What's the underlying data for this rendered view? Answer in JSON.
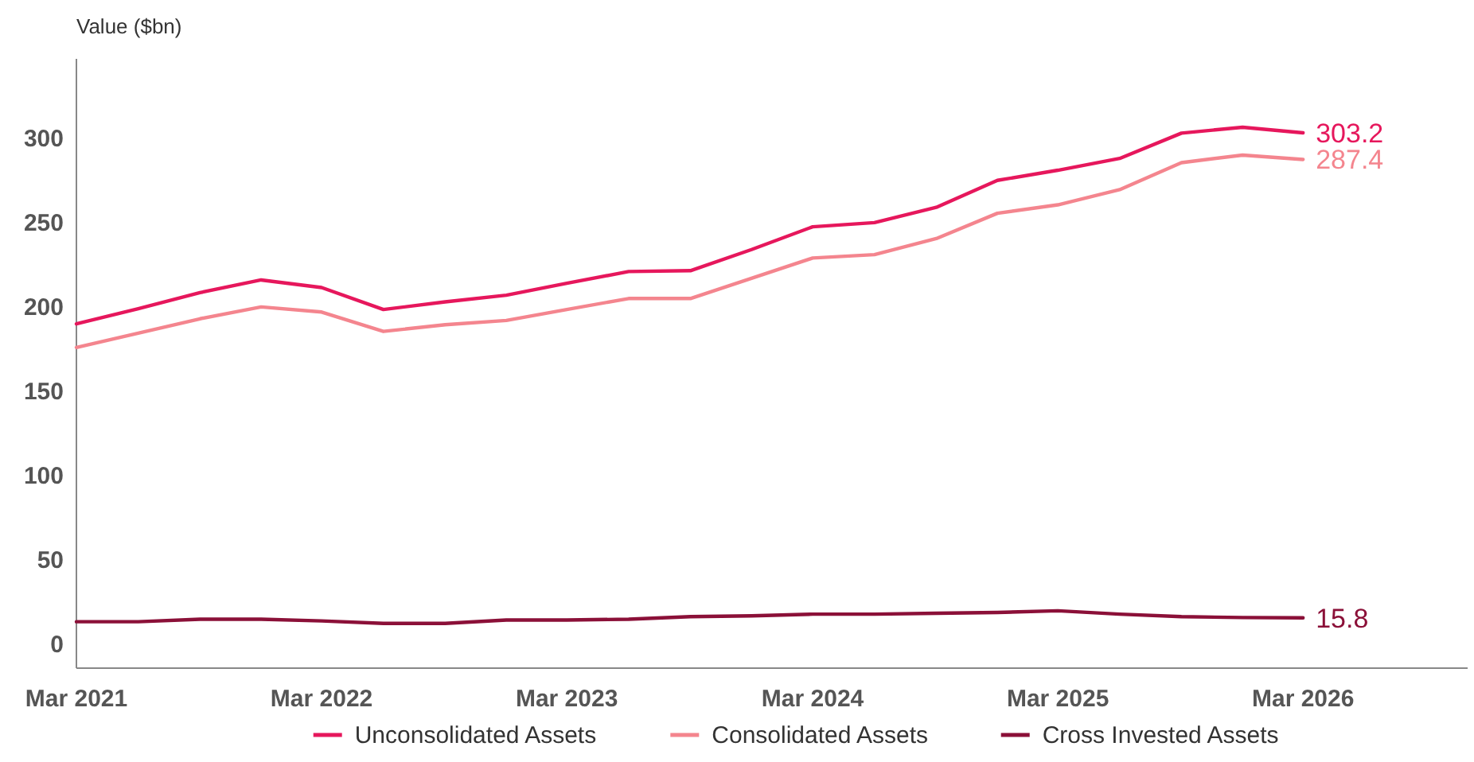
{
  "chart_data": {
    "type": "line",
    "ylabel": "Value ($bn)",
    "x": [
      "2021-03",
      "2021-06",
      "2021-09",
      "2021-12",
      "2022-03",
      "2022-06",
      "2022-09",
      "2022-12",
      "2023-03",
      "2023-06",
      "2023-09",
      "2023-12",
      "2024-03",
      "2024-06",
      "2024-09",
      "2024-12",
      "2025-03",
      "2025-06",
      "2025-09",
      "2025-12",
      "2026-03"
    ],
    "xlim": [
      "2021-03",
      "2026-11"
    ],
    "xticks": [
      {
        "value": "2021-03",
        "label": "Mar 2021"
      },
      {
        "value": "2022-03",
        "label": "Mar 2022"
      },
      {
        "value": "2023-03",
        "label": "Mar 2023"
      },
      {
        "value": "2024-03",
        "label": "Mar 2024"
      },
      {
        "value": "2025-03",
        "label": "Mar 2025"
      },
      {
        "value": "2026-03",
        "label": "Mar 2026"
      }
    ],
    "ylim": [
      -14,
      347
    ],
    "yticks": [
      0,
      50,
      100,
      150,
      200,
      250,
      300
    ],
    "grid": false,
    "legend": "bottom",
    "marker": "none",
    "line_style": "solid",
    "series": [
      {
        "name": "Unconsolidated Assets",
        "color": "#e6175c",
        "values": [
          190,
          199,
          208.5,
          216,
          211.5,
          198.5,
          203,
          207,
          214,
          221,
          221.5,
          234,
          247.5,
          250,
          259,
          275,
          281,
          288,
          303,
          306.5,
          303.2
        ],
        "value_labels": [
          null,
          null,
          null,
          null,
          null,
          null,
          null,
          null,
          null,
          null,
          null,
          null,
          null,
          null,
          null,
          null,
          null,
          null,
          null,
          null,
          "303.2"
        ]
      },
      {
        "name": "Consolidated Assets",
        "color": "#f4858e",
        "values": [
          176,
          184.5,
          193,
          200,
          197,
          185.5,
          189.5,
          192,
          198.5,
          205,
          205,
          217,
          229,
          231,
          240.5,
          255.5,
          260.5,
          269.5,
          285.5,
          290,
          287.4
        ],
        "value_labels": [
          null,
          null,
          null,
          null,
          null,
          null,
          null,
          null,
          null,
          null,
          null,
          null,
          null,
          null,
          null,
          null,
          null,
          null,
          null,
          null,
          "287.4"
        ]
      },
      {
        "name": "Cross Invested Assets",
        "color": "#8b1038",
        "values": [
          13.5,
          13.5,
          15,
          15,
          14,
          12.5,
          12.5,
          14.5,
          14.5,
          15,
          16.5,
          17,
          18,
          18,
          18.5,
          19,
          20,
          18,
          16.5,
          16,
          15.8
        ],
        "value_labels": [
          null,
          null,
          null,
          null,
          null,
          null,
          null,
          null,
          null,
          null,
          null,
          null,
          null,
          null,
          null,
          null,
          null,
          null,
          null,
          null,
          "15.8"
        ]
      }
    ]
  }
}
